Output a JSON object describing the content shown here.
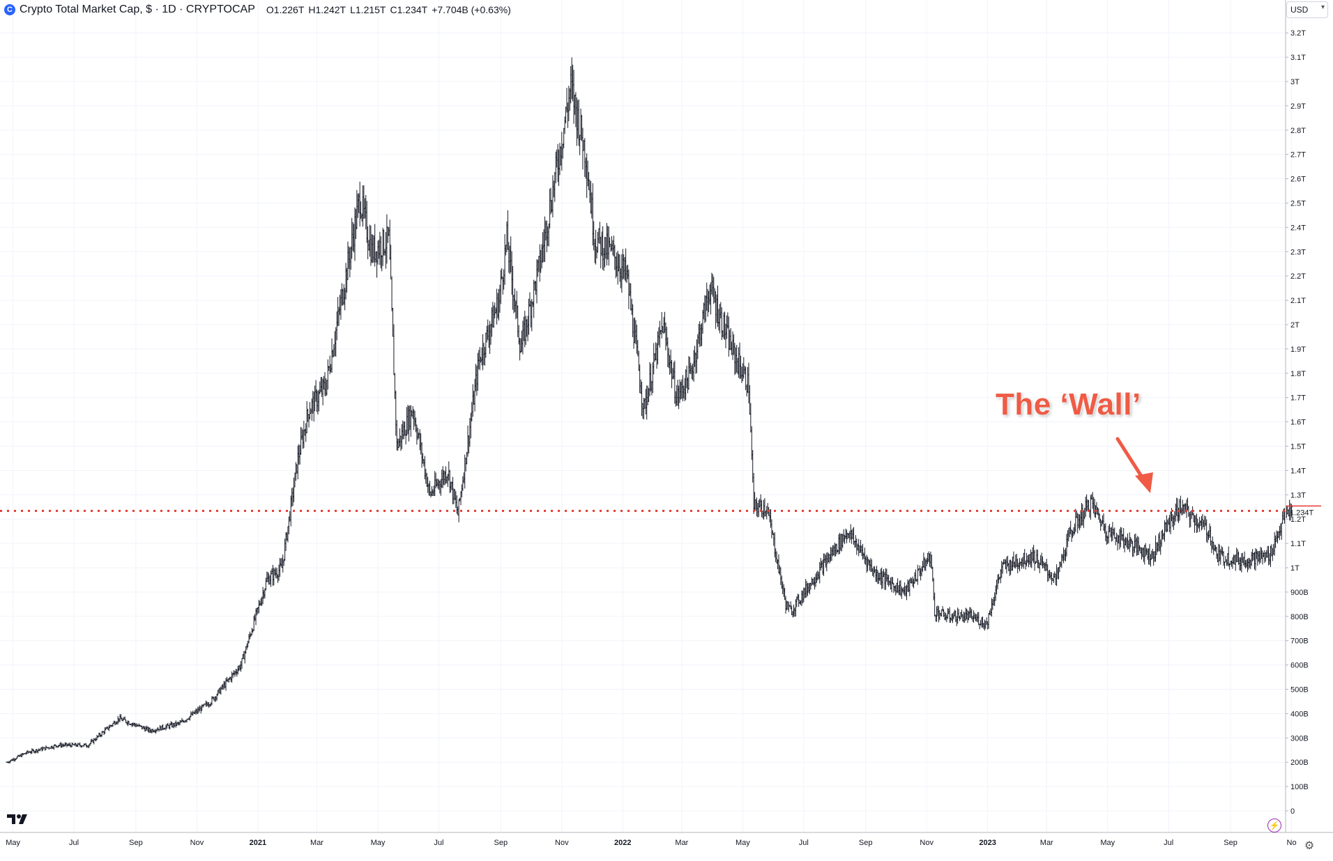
{
  "header": {
    "title": "Crypto Total Market Cap, $ · 1D · CRYPTOCAP",
    "symbol_icon": "C",
    "open_label": "O",
    "open_value": "1.226T",
    "high_label": "H",
    "high_value": "1.242T",
    "low_label": "L",
    "low_value": "1.215T",
    "close_label": "C",
    "close_value": "1.234T",
    "change": "+7.704B (+0.63%)"
  },
  "toolbar": {
    "currency": "USD",
    "chevron_icon": "chevron-down-icon",
    "settings_icon": "gear-icon",
    "logo_icon": "tradingview-logo-icon",
    "bolt_icon": "lightning-icon"
  },
  "annotation": {
    "text": "The ‘Wall’"
  },
  "colors": {
    "candles": "#131722",
    "level_line": "#e53935",
    "arrow": "#ef5b45",
    "grid": "#f0f3fa",
    "axis_text": "#131722"
  },
  "chart_data": {
    "type": "bar",
    "style": "ohlc",
    "interval": "1D",
    "y_unit": "USD",
    "ylim": [
      0,
      3.25
    ],
    "grid": true,
    "y_ticks": [
      {
        "v": 3.2,
        "label": "3.2T"
      },
      {
        "v": 3.1,
        "label": "3.1T"
      },
      {
        "v": 3.0,
        "label": "3T"
      },
      {
        "v": 2.9,
        "label": "2.9T"
      },
      {
        "v": 2.8,
        "label": "2.8T"
      },
      {
        "v": 2.7,
        "label": "2.7T"
      },
      {
        "v": 2.6,
        "label": "2.6T"
      },
      {
        "v": 2.5,
        "label": "2.5T"
      },
      {
        "v": 2.4,
        "label": "2.4T"
      },
      {
        "v": 2.3,
        "label": "2.3T"
      },
      {
        "v": 2.2,
        "label": "2.2T"
      },
      {
        "v": 2.1,
        "label": "2.1T"
      },
      {
        "v": 2.0,
        "label": "2T"
      },
      {
        "v": 1.9,
        "label": "1.9T"
      },
      {
        "v": 1.8,
        "label": "1.8T"
      },
      {
        "v": 1.7,
        "label": "1.7T"
      },
      {
        "v": 1.6,
        "label": "1.6T"
      },
      {
        "v": 1.5,
        "label": "1.5T"
      },
      {
        "v": 1.4,
        "label": "1.4T"
      },
      {
        "v": 1.3,
        "label": "1.3T"
      },
      {
        "v": 1.2,
        "label": "1.2T"
      },
      {
        "v": 1.1,
        "label": "1.1T"
      },
      {
        "v": 1.0,
        "label": "1T"
      },
      {
        "v": 0.9,
        "label": "900B"
      },
      {
        "v": 0.8,
        "label": "800B"
      },
      {
        "v": 0.7,
        "label": "700B"
      },
      {
        "v": 0.6,
        "label": "600B"
      },
      {
        "v": 0.5,
        "label": "500B"
      },
      {
        "v": 0.4,
        "label": "400B"
      },
      {
        "v": 0.3,
        "label": "300B"
      },
      {
        "v": 0.2,
        "label": "200B"
      },
      {
        "v": 0.1,
        "label": "100B"
      },
      {
        "v": 0.0,
        "label": "0"
      }
    ],
    "x_ticks": [
      {
        "date": "2020-05-01",
        "label": "May"
      },
      {
        "date": "2020-07-01",
        "label": "Jul"
      },
      {
        "date": "2020-09-01",
        "label": "Sep"
      },
      {
        "date": "2020-11-01",
        "label": "Nov"
      },
      {
        "date": "2021-01-01",
        "label": "2021"
      },
      {
        "date": "2021-03-01",
        "label": "Mar"
      },
      {
        "date": "2021-05-01",
        "label": "May"
      },
      {
        "date": "2021-07-01",
        "label": "Jul"
      },
      {
        "date": "2021-09-01",
        "label": "Sep"
      },
      {
        "date": "2021-11-01",
        "label": "Nov"
      },
      {
        "date": "2022-01-01",
        "label": "2022"
      },
      {
        "date": "2022-03-01",
        "label": "Mar"
      },
      {
        "date": "2022-05-01",
        "label": "May"
      },
      {
        "date": "2022-07-01",
        "label": "Jul"
      },
      {
        "date": "2022-09-01",
        "label": "Sep"
      },
      {
        "date": "2022-11-01",
        "label": "Nov"
      },
      {
        "date": "2023-01-01",
        "label": "2023"
      },
      {
        "date": "2023-03-01",
        "label": "Mar"
      },
      {
        "date": "2023-05-01",
        "label": "May"
      },
      {
        "date": "2023-07-01",
        "label": "Jul"
      },
      {
        "date": "2023-09-01",
        "label": "Sep"
      },
      {
        "date": "2023-11-01",
        "label": "No"
      }
    ],
    "x_range": [
      "2020-04-25",
      "2023-11-02"
    ],
    "level_line": {
      "value": 1.234,
      "label": "1.234T",
      "style": "dotted"
    },
    "current_price": {
      "value": 1.234,
      "label": "1.234T"
    },
    "series": [
      {
        "values_unit": "trillion USD (monthly approximate close)",
        "x": [
          "2020-04-25",
          "2020-05-15",
          "2020-06-15",
          "2020-07-15",
          "2020-08-15",
          "2020-09-15",
          "2020-10-15",
          "2020-11-15",
          "2020-12-15",
          "2021-01-10",
          "2021-01-25",
          "2021-02-10",
          "2021-02-21",
          "2021-03-10",
          "2021-04-13",
          "2021-04-25",
          "2021-05-12",
          "2021-05-20",
          "2021-06-05",
          "2021-06-22",
          "2021-07-10",
          "2021-07-20",
          "2021-08-10",
          "2021-08-30",
          "2021-09-07",
          "2021-09-21",
          "2021-10-10",
          "2021-10-25",
          "2021-11-10",
          "2021-11-25",
          "2021-12-04",
          "2021-12-20",
          "2022-01-05",
          "2022-01-22",
          "2022-02-10",
          "2022-02-24",
          "2022-03-10",
          "2022-03-29",
          "2022-04-20",
          "2022-05-07",
          "2022-05-12",
          "2022-05-25",
          "2022-06-13",
          "2022-06-18",
          "2022-07-10",
          "2022-08-14",
          "2022-09-10",
          "2022-10-10",
          "2022-11-05",
          "2022-11-09",
          "2022-11-21",
          "2022-12-15",
          "2022-12-31",
          "2023-01-15",
          "2023-02-15",
          "2023-03-10",
          "2023-03-25",
          "2023-04-14",
          "2023-04-30",
          "2023-05-15",
          "2023-06-15",
          "2023-06-30",
          "2023-07-13",
          "2023-08-10",
          "2023-08-18",
          "2023-09-11",
          "2023-10-10",
          "2023-10-24",
          "2023-11-01"
        ],
        "values": [
          0.2,
          0.24,
          0.27,
          0.27,
          0.38,
          0.33,
          0.36,
          0.45,
          0.6,
          0.95,
          1.0,
          1.45,
          1.65,
          1.75,
          2.52,
          2.3,
          2.35,
          1.5,
          1.65,
          1.3,
          1.4,
          1.22,
          1.85,
          2.1,
          2.35,
          1.9,
          2.25,
          2.6,
          2.98,
          2.7,
          2.35,
          2.3,
          2.2,
          1.65,
          2.0,
          1.7,
          1.8,
          2.15,
          1.9,
          1.75,
          1.25,
          1.25,
          0.85,
          0.82,
          0.95,
          1.15,
          0.98,
          0.9,
          1.05,
          0.82,
          0.8,
          0.8,
          0.77,
          1.0,
          1.05,
          0.95,
          1.15,
          1.27,
          1.15,
          1.12,
          1.05,
          1.18,
          1.25,
          1.15,
          1.05,
          1.03,
          1.05,
          1.2,
          1.25
        ]
      }
    ]
  }
}
